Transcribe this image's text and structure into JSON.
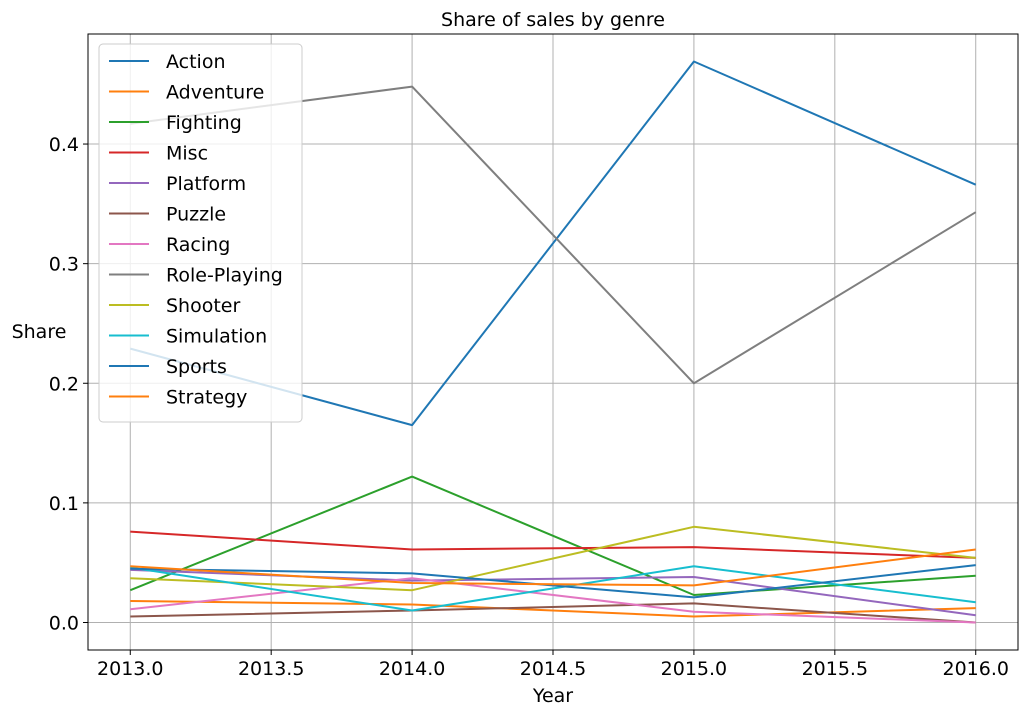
{
  "chart_data": {
    "type": "line",
    "title": "Share of sales by genre",
    "xlabel": "Year",
    "ylabel": "Share",
    "x": [
      2013.0,
      2014.0,
      2015.0,
      2016.0
    ],
    "xlim": [
      2012.85,
      2016.15
    ],
    "ylim": [
      -0.023,
      0.492
    ],
    "xticks": [
      2013.0,
      2013.5,
      2014.0,
      2014.5,
      2015.0,
      2015.5,
      2016.0
    ],
    "xtick_labels": [
      "2013.0",
      "2013.5",
      "2014.0",
      "2014.5",
      "2015.0",
      "2015.5",
      "2016.0"
    ],
    "yticks": [
      0.0,
      0.1,
      0.2,
      0.3,
      0.4
    ],
    "ytick_labels": [
      "0.0",
      "0.1",
      "0.2",
      "0.3",
      "0.4"
    ],
    "grid": true,
    "legend_position": "top-left",
    "series": [
      {
        "name": "Action",
        "color": "#1f77b4",
        "values": [
          0.229,
          0.165,
          0.469,
          0.366
        ]
      },
      {
        "name": "Adventure",
        "color": "#ff7f0e",
        "values": [
          0.018,
          0.015,
          0.005,
          0.012
        ]
      },
      {
        "name": "Fighting",
        "color": "#2ca02c",
        "values": [
          0.027,
          0.122,
          0.023,
          0.039
        ]
      },
      {
        "name": "Misc",
        "color": "#d62728",
        "values": [
          0.076,
          0.061,
          0.063,
          0.054
        ]
      },
      {
        "name": "Platform",
        "color": "#9467bd",
        "values": [
          0.044,
          0.035,
          0.038,
          0.006
        ]
      },
      {
        "name": "Puzzle",
        "color": "#8c564b",
        "values": [
          0.005,
          0.01,
          0.016,
          0.0
        ]
      },
      {
        "name": "Racing",
        "color": "#e377c2",
        "values": [
          0.011,
          0.037,
          0.009,
          0.0
        ]
      },
      {
        "name": "Role-Playing",
        "color": "#7f7f7f",
        "values": [
          0.417,
          0.448,
          0.2,
          0.343
        ]
      },
      {
        "name": "Shooter",
        "color": "#bcbd22",
        "values": [
          0.037,
          0.027,
          0.08,
          0.054
        ]
      },
      {
        "name": "Simulation",
        "color": "#17becf",
        "values": [
          0.046,
          0.01,
          0.047,
          0.017
        ]
      },
      {
        "name": "Sports",
        "color": "#1f77b4",
        "values": [
          0.045,
          0.041,
          0.021,
          0.048
        ]
      },
      {
        "name": "Strategy",
        "color": "#ff7f0e",
        "values": [
          0.047,
          0.033,
          0.031,
          0.061
        ]
      }
    ]
  }
}
